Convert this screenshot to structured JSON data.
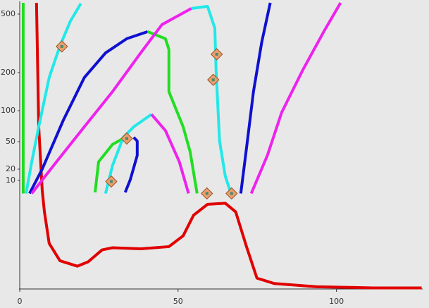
{
  "chart_data": {
    "type": "line",
    "xlim": [
      0,
      127
    ],
    "xticks": [
      0,
      50,
      100
    ],
    "ylim": [
      0,
      600
    ],
    "yticks": [
      10,
      20,
      50,
      100,
      200,
      500
    ],
    "series": [
      {
        "color": "#e00000",
        "x": [
          5.3,
          6.0,
          7.1,
          7.8,
          9.3,
          12.7,
          18.2,
          21.6,
          26.0,
          29.3,
          38.2,
          47.1,
          51.6,
          54.9,
          59.3,
          64.9,
          68.2,
          71.6,
          74.9,
          80.4,
          93.8,
          111.6,
          126.9
        ],
        "values": [
          600,
          74,
          9.1,
          7.1,
          4.2,
          2.6,
          2.1,
          2.5,
          3.6,
          3.8,
          3.7,
          3.9,
          4.9,
          6.8,
          7.8,
          7.9,
          7.1,
          3.9,
          1.0,
          0.5,
          0.2,
          0.1,
          0.1
        ]
      },
      {
        "color": "#22dd22",
        "x": [
          1.1,
          1.1
        ],
        "values": [
          8.8,
          600
        ]
      },
      {
        "color": "#22e8e8",
        "x": [
          2.0,
          3.8,
          6.0,
          9.3,
          12.7,
          16.0,
          19.3
        ],
        "values": [
          8.8,
          28,
          74,
          187,
          337,
          464,
          594
        ]
      },
      {
        "color": "#1010d0",
        "x": [
          3.1,
          7.1,
          13.8,
          20.4,
          27.1,
          33.8,
          40.4
        ],
        "values": [
          8.8,
          20,
          85,
          187,
          301,
          374,
          410
        ]
      },
      {
        "color": "#22dd22",
        "x": [
          40.4,
          46.0,
          47.1,
          47.1,
          51.6,
          53.8,
          56.0
        ],
        "values": [
          410,
          374,
          319,
          150,
          74,
          39,
          8.8
        ]
      },
      {
        "color": "#ee22ee",
        "x": [
          3.8,
          11.6,
          20.4,
          29.3,
          38.2,
          44.9,
          54.2
        ],
        "values": [
          8.8,
          28,
          74,
          150,
          301,
          446,
          550
        ]
      },
      {
        "color": "#22e8e8",
        "x": [
          54.2,
          59.3,
          61.6,
          62.0,
          63.1,
          64.9,
          66.7
        ],
        "values": [
          550,
          569,
          428,
          211,
          51,
          13.8,
          8.8
        ]
      },
      {
        "color": "#1010d0",
        "x": [
          69.8,
          71.6,
          73.8,
          76.4,
          79.1
        ],
        "values": [
          8.8,
          43,
          150,
          355,
          600
        ]
      },
      {
        "color": "#ee22ee",
        "x": [
          73.1,
          78.2,
          82.7,
          89.3,
          96.0,
          101.3
        ],
        "values": [
          8.8,
          35,
          97,
          211,
          410,
          600
        ]
      },
      {
        "color": "#22dd22",
        "x": [
          23.8,
          24.9,
          29.3,
          33.3
        ],
        "values": [
          8.9,
          28,
          47,
          57
        ]
      },
      {
        "color": "#22e8e8",
        "x": [
          27.1,
          29.3,
          32.7,
          36.0,
          41.6
        ],
        "values": [
          8.8,
          24,
          57,
          74,
          94
        ]
      },
      {
        "color": "#ee22ee",
        "x": [
          41.6,
          46.0,
          50.4,
          53.3
        ],
        "values": [
          94,
          68,
          28,
          8.8
        ]
      },
      {
        "color": "#1010d0",
        "x": [
          33.3,
          34.9,
          37.1,
          37.1,
          36.0
        ],
        "values": [
          8.9,
          10.6,
          35,
          51,
          57
        ]
      },
      {
        "color": "#e8a070",
        "marker": "diamond",
        "x": [
          13.3,
          62.2,
          61.1,
          33.8,
          28.9,
          59.1,
          66.9
        ],
        "values": [
          334,
          294,
          181,
          55,
          9.9,
          8.8,
          8.8
        ]
      }
    ]
  }
}
